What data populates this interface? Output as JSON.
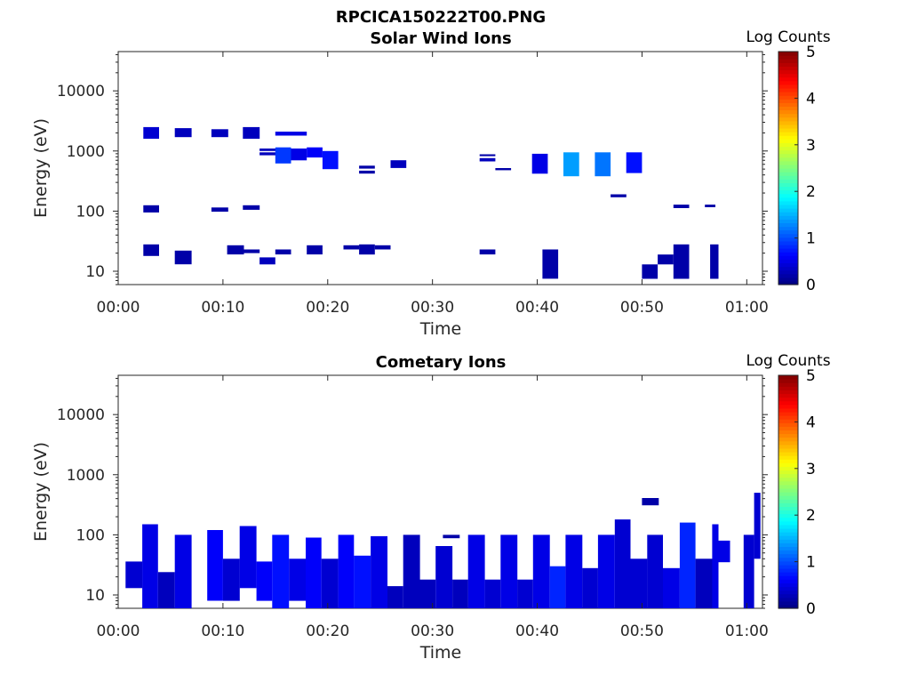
{
  "figure": {
    "filename": "RPCICA150222T00.PNG"
  },
  "chart_data": [
    {
      "type": "heatmap",
      "title": "Solar Wind Ions",
      "xlabel": "Time",
      "ylabel": "Energy (eV)",
      "xticks": [
        "00:00",
        "00:10",
        "00:20",
        "00:30",
        "00:40",
        "00:50",
        "01:00"
      ],
      "xlim_minutes": [
        0,
        61.5
      ],
      "yscale": "log",
      "ylim": [
        6,
        45000
      ],
      "yticks": [
        "10",
        "100",
        "1000",
        "10000"
      ],
      "colorbar": {
        "label": "Log Counts",
        "range": [
          0,
          5
        ],
        "ticks": [
          "0",
          "1",
          "2",
          "3",
          "4",
          "5"
        ],
        "colormap": "jet"
      },
      "cells_format": [
        "t_start_min",
        "t_end_min",
        "e_low_eV",
        "e_high_eV",
        "log_counts"
      ],
      "cells": [
        [
          2.4,
          3.9,
          1600,
          2500,
          0.4
        ],
        [
          5.4,
          7.0,
          1700,
          2400,
          0.3
        ],
        [
          8.9,
          10.5,
          1700,
          2300,
          0.3
        ],
        [
          11.9,
          13.5,
          1600,
          2500,
          0.3
        ],
        [
          15.0,
          18.0,
          1800,
          2100,
          0.5
        ],
        [
          13.5,
          15.5,
          1000,
          1100,
          0.3
        ],
        [
          13.5,
          15.5,
          850,
          950,
          0.3
        ],
        [
          15.0,
          16.5,
          620,
          1150,
          0.9
        ],
        [
          16.5,
          18.0,
          700,
          1100,
          0.5
        ],
        [
          18.0,
          19.5,
          780,
          1150,
          0.6
        ],
        [
          19.5,
          21.0,
          500,
          1000,
          0.7
        ],
        [
          23.0,
          24.5,
          510,
          570,
          0.2
        ],
        [
          23.0,
          24.5,
          420,
          470,
          0.2
        ],
        [
          26.0,
          27.5,
          520,
          700,
          0.3
        ],
        [
          34.5,
          36.0,
          820,
          880,
          0.2
        ],
        [
          34.5,
          36.0,
          670,
          760,
          0.3
        ],
        [
          36.0,
          37.5,
          480,
          520,
          0.2
        ],
        [
          39.5,
          41.0,
          420,
          900,
          0.5
        ],
        [
          42.5,
          44.0,
          380,
          950,
          1.4
        ],
        [
          45.5,
          47.0,
          380,
          950,
          1.2
        ],
        [
          48.5,
          50.0,
          430,
          950,
          0.7
        ],
        [
          47.0,
          48.5,
          170,
          190,
          0.2
        ],
        [
          2.4,
          3.9,
          95,
          125,
          0.2
        ],
        [
          8.9,
          10.5,
          98,
          115,
          0.2
        ],
        [
          11.9,
          13.5,
          105,
          125,
          0.2
        ],
        [
          53.0,
          54.5,
          112,
          128,
          0.2
        ],
        [
          56.0,
          57.0,
          116,
          128,
          0.2
        ],
        [
          2.4,
          3.9,
          18,
          28,
          0.2
        ],
        [
          5.4,
          7.0,
          13,
          22,
          0.2
        ],
        [
          10.4,
          12.0,
          19,
          27,
          0.2
        ],
        [
          12.0,
          13.5,
          20,
          23,
          0.2
        ],
        [
          13.5,
          15.0,
          13,
          17,
          0.3
        ],
        [
          15.0,
          16.5,
          19,
          23,
          0.2
        ],
        [
          18.0,
          19.5,
          19,
          27,
          0.2
        ],
        [
          21.5,
          23.0,
          23,
          27,
          0.2
        ],
        [
          23.0,
          24.5,
          19,
          28,
          0.2
        ],
        [
          24.5,
          26.0,
          23,
          27,
          0.2
        ],
        [
          34.5,
          36.0,
          19,
          23,
          0.2
        ],
        [
          40.5,
          42.0,
          7.5,
          23,
          0.2
        ],
        [
          50.0,
          51.5,
          7.5,
          13,
          0.2
        ],
        [
          51.5,
          53.0,
          13,
          19,
          0.2
        ],
        [
          53.0,
          54.5,
          7.5,
          28,
          0.2
        ],
        [
          56.5,
          57.3,
          7.5,
          28,
          0.2
        ]
      ]
    },
    {
      "type": "heatmap",
      "title": "Cometary Ions",
      "xlabel": "Time",
      "ylabel": "Energy (eV)",
      "xticks": [
        "00:00",
        "00:10",
        "00:20",
        "00:30",
        "00:40",
        "00:50",
        "01:00"
      ],
      "xlim_minutes": [
        0,
        61.5
      ],
      "yscale": "log",
      "ylim": [
        6,
        45000
      ],
      "yticks": [
        "10",
        "100",
        "1000",
        "10000"
      ],
      "colorbar": {
        "label": "Log Counts",
        "range": [
          0,
          5
        ],
        "ticks": [
          "0",
          "1",
          "2",
          "3",
          "4",
          "5"
        ],
        "colormap": "jet"
      },
      "cells_format": [
        "t_start_min",
        "t_end_min",
        "e_low_eV",
        "e_high_eV",
        "log_counts"
      ],
      "cells": [
        [
          0.7,
          2.3,
          13,
          36,
          0.4
        ],
        [
          2.3,
          3.8,
          6,
          150,
          0.5
        ],
        [
          3.8,
          5.4,
          6,
          24,
          0.3
        ],
        [
          5.4,
          7.0,
          6,
          100,
          0.5
        ],
        [
          8.5,
          10.0,
          8,
          120,
          0.6
        ],
        [
          10.0,
          11.6,
          8,
          40,
          0.4
        ],
        [
          11.6,
          13.2,
          13,
          140,
          0.5
        ],
        [
          13.2,
          14.7,
          8,
          36,
          0.6
        ],
        [
          14.7,
          16.3,
          6,
          100,
          0.7
        ],
        [
          16.3,
          17.9,
          8,
          40,
          0.5
        ],
        [
          17.9,
          19.4,
          6,
          90,
          0.6
        ],
        [
          19.4,
          21.0,
          6,
          40,
          0.4
        ],
        [
          21.0,
          22.5,
          6,
          100,
          0.6
        ],
        [
          22.5,
          24.1,
          6,
          45,
          0.7
        ],
        [
          24.1,
          25.7,
          6,
          95,
          0.5
        ],
        [
          25.7,
          27.2,
          6,
          14,
          0.3
        ],
        [
          27.2,
          28.8,
          6,
          100,
          0.3
        ],
        [
          28.8,
          30.3,
          6,
          18,
          0.3
        ],
        [
          30.3,
          31.9,
          6,
          65,
          0.4
        ],
        [
          31.9,
          33.4,
          6,
          18,
          0.3
        ],
        [
          33.4,
          35.0,
          6,
          100,
          0.5
        ],
        [
          35.0,
          36.5,
          6,
          18,
          0.4
        ],
        [
          36.5,
          38.1,
          6,
          100,
          0.5
        ],
        [
          38.1,
          39.6,
          6,
          18,
          0.4
        ],
        [
          39.6,
          41.2,
          6,
          100,
          0.5
        ],
        [
          41.2,
          42.7,
          6,
          30,
          0.8
        ],
        [
          42.7,
          44.3,
          6,
          100,
          0.5
        ],
        [
          44.3,
          45.8,
          6,
          28,
          0.4
        ],
        [
          45.8,
          47.4,
          6,
          100,
          0.5
        ],
        [
          47.4,
          48.9,
          6,
          180,
          0.4
        ],
        [
          48.9,
          50.5,
          6,
          40,
          0.4
        ],
        [
          50.5,
          52.0,
          6,
          100,
          0.4
        ],
        [
          52.0,
          53.6,
          6,
          28,
          0.5
        ],
        [
          53.6,
          55.1,
          6,
          160,
          0.8
        ],
        [
          55.1,
          56.7,
          6,
          40,
          0.3
        ],
        [
          56.7,
          57.3,
          6,
          150,
          0.5
        ],
        [
          57.3,
          58.4,
          35,
          80,
          0.5
        ],
        [
          59.7,
          60.7,
          6,
          100,
          0.4
        ],
        [
          60.7,
          61.3,
          40,
          500,
          0.4
        ],
        [
          31.0,
          32.6,
          88,
          100,
          0.2
        ],
        [
          50.0,
          51.6,
          310,
          410,
          0.2
        ]
      ]
    }
  ]
}
